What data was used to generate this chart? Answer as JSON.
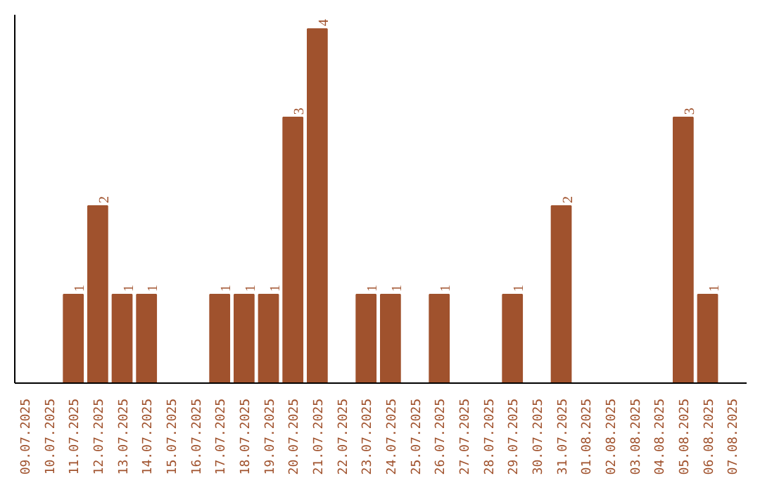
{
  "chart_data": {
    "type": "bar",
    "categories": [
      "09.07.2025",
      "10.07.2025",
      "11.07.2025",
      "12.07.2025",
      "13.07.2025",
      "14.07.2025",
      "15.07.2025",
      "16.07.2025",
      "17.07.2025",
      "18.07.2025",
      "19.07.2025",
      "20.07.2025",
      "21.07.2025",
      "22.07.2025",
      "23.07.2025",
      "24.07.2025",
      "25.07.2025",
      "26.07.2025",
      "27.07.2025",
      "28.07.2025",
      "29.07.2025",
      "30.07.2025",
      "31.07.2025",
      "01.08.2025",
      "02.08.2025",
      "03.08.2025",
      "04.08.2025",
      "05.08.2025",
      "06.08.2025",
      "07.08.2025"
    ],
    "values": [
      0,
      0,
      1,
      2,
      1,
      1,
      0,
      0,
      1,
      1,
      1,
      3,
      4,
      0,
      1,
      1,
      0,
      1,
      0,
      0,
      1,
      0,
      2,
      0,
      0,
      0,
      0,
      3,
      1,
      0
    ],
    "value_labels": [
      null,
      null,
      "1",
      "2",
      "1",
      "1",
      null,
      null,
      "1",
      "1",
      "1",
      "3",
      "4",
      null,
      "1",
      "1",
      null,
      "1",
      null,
      null,
      "1",
      null,
      "2",
      null,
      null,
      null,
      null,
      "3",
      "1",
      null
    ],
    "color": "#a0522d",
    "ylim": [
      0,
      4.16
    ],
    "tick_labels": "x",
    "grid": false
  }
}
